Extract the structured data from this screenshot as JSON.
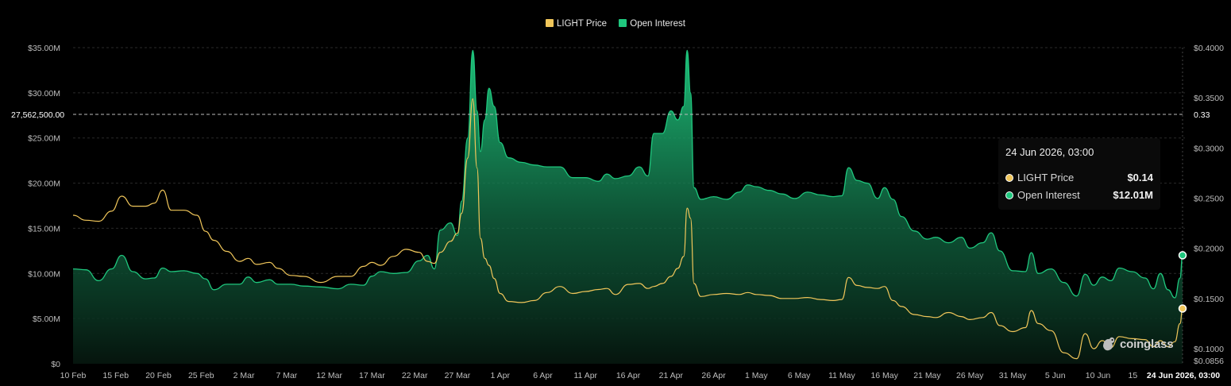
{
  "legend": {
    "price_label": "LIGHT Price",
    "oi_label": "Open Interest"
  },
  "colors": {
    "price": "#f0c65a",
    "oi": "#1fc77e",
    "background": "#000000"
  },
  "crosshair": {
    "left_label": "27,562,500.00",
    "right_label": "0.33"
  },
  "tooltip": {
    "title": "24 Jun 2026, 03:00",
    "price_label": "LIGHT Price",
    "price_value": "$0.14",
    "oi_label": "Open Interest",
    "oi_value": "$12.01M"
  },
  "watermark": "coinglass",
  "watermark_icon": "coinglass-logo-icon",
  "chart_data": {
    "type": "area",
    "grid": true,
    "legend_position": "top-center",
    "x_tick_labels": [
      "10 Feb",
      "15 Feb",
      "20 Feb",
      "25 Feb",
      "2 Mar",
      "7 Mar",
      "12 Mar",
      "17 Mar",
      "22 Mar",
      "27 Mar",
      "1 Apr",
      "6 Apr",
      "11 Apr",
      "16 Apr",
      "21 Apr",
      "26 Apr",
      "1 May",
      "6 May",
      "11 May",
      "16 May",
      "21 May",
      "26 May",
      "31 May",
      "5 Jun",
      "10 Jun",
      "15 Jun"
    ],
    "x_last_label": "24 Jun 2026, 03:00",
    "y_left": {
      "ticks": [
        "$0",
        "$5.00M",
        "$10.00M",
        "$15.00M",
        "$20.00M",
        "$25.00M",
        "$30.00M",
        "$35.00M"
      ],
      "range": [
        0,
        35
      ]
    },
    "y_right": {
      "ticks": [
        "$0.0856",
        "$0.1000",
        "$0.1500",
        "$0.2000",
        "$0.2500",
        "$0.3000",
        "$0.3500",
        "$0.4000"
      ],
      "range": [
        0.0856,
        0.4
      ]
    },
    "series": [
      {
        "name": "Open Interest",
        "axis": "left",
        "unit": "M USD",
        "points": [
          [
            0,
            10.5
          ],
          [
            1.5,
            10.4
          ],
          [
            3,
            9.2
          ],
          [
            4.5,
            10.5
          ],
          [
            5.7,
            12.0
          ],
          [
            7,
            10.2
          ],
          [
            8.5,
            9.4
          ],
          [
            9.5,
            9.5
          ],
          [
            10.5,
            10.6
          ],
          [
            11.5,
            10.2
          ],
          [
            13,
            10.3
          ],
          [
            14.5,
            10.0
          ],
          [
            15.5,
            9.4
          ],
          [
            16.5,
            8.2
          ],
          [
            18,
            8.8
          ],
          [
            19.5,
            8.8
          ],
          [
            20.5,
            9.6
          ],
          [
            21.5,
            9.0
          ],
          [
            23,
            9.3
          ],
          [
            24,
            8.8
          ],
          [
            25.5,
            8.8
          ],
          [
            27,
            8.6
          ],
          [
            29,
            8.5
          ],
          [
            31,
            8.3
          ],
          [
            32.5,
            8.8
          ],
          [
            34,
            8.7
          ],
          [
            35,
            9.7
          ],
          [
            36,
            10.2
          ],
          [
            37.5,
            10.0
          ],
          [
            39,
            10.1
          ],
          [
            40.5,
            11.4
          ],
          [
            41.5,
            12.0
          ],
          [
            42.3,
            10.5
          ],
          [
            43,
            14.8
          ],
          [
            44.2,
            15.6
          ],
          [
            45,
            14.2
          ],
          [
            45.5,
            18.0
          ],
          [
            46.2,
            25.0
          ],
          [
            46.8,
            34.7
          ],
          [
            47.3,
            28.0
          ],
          [
            47.7,
            23.5
          ],
          [
            48.2,
            27.0
          ],
          [
            48.7,
            30.5
          ],
          [
            49.3,
            28.5
          ],
          [
            50,
            24.5
          ],
          [
            51,
            22.8
          ],
          [
            52.5,
            22.3
          ],
          [
            54,
            22.0
          ],
          [
            55.5,
            21.8
          ],
          [
            57,
            21.8
          ],
          [
            58.5,
            20.6
          ],
          [
            60,
            20.6
          ],
          [
            61.5,
            20.2
          ],
          [
            62.5,
            21.0
          ],
          [
            63.5,
            20.5
          ],
          [
            65,
            20.8
          ],
          [
            66.3,
            21.8
          ],
          [
            67.3,
            20.8
          ],
          [
            68,
            25.5
          ],
          [
            69,
            25.5
          ],
          [
            70,
            28.0
          ],
          [
            70.8,
            27.0
          ],
          [
            71.5,
            28.5
          ],
          [
            71.9,
            34.7
          ],
          [
            72.3,
            30.0
          ],
          [
            72.7,
            19.5
          ],
          [
            73.5,
            18.2
          ],
          [
            75,
            18.5
          ],
          [
            76.5,
            18.2
          ],
          [
            78,
            19.0
          ],
          [
            79,
            19.8
          ],
          [
            80,
            19.6
          ],
          [
            81.5,
            19.2
          ],
          [
            83,
            18.8
          ],
          [
            84.5,
            18.3
          ],
          [
            86,
            19.0
          ],
          [
            87.5,
            18.7
          ],
          [
            89,
            18.5
          ],
          [
            90,
            18.6
          ],
          [
            90.8,
            21.7
          ],
          [
            91.8,
            20.3
          ],
          [
            93,
            20.0
          ],
          [
            94.2,
            18.3
          ],
          [
            95,
            19.5
          ],
          [
            96,
            18.2
          ],
          [
            97,
            16.3
          ],
          [
            98.5,
            14.7
          ],
          [
            100,
            13.8
          ],
          [
            101,
            14.0
          ],
          [
            102.5,
            13.4
          ],
          [
            104,
            14.0
          ],
          [
            105,
            12.8
          ],
          [
            106.5,
            13.4
          ],
          [
            107.5,
            14.5
          ],
          [
            108.5,
            12.5
          ],
          [
            110,
            10.3
          ],
          [
            111.5,
            10.2
          ],
          [
            112.2,
            12.3
          ],
          [
            113,
            10.0
          ],
          [
            114.5,
            10.5
          ],
          [
            116,
            9.0
          ],
          [
            117.5,
            7.5
          ],
          [
            118.5,
            9.9
          ],
          [
            119.5,
            8.7
          ],
          [
            120.5,
            9.6
          ],
          [
            121.5,
            9.2
          ],
          [
            122.5,
            10.6
          ],
          [
            124,
            10.2
          ],
          [
            125.5,
            9.5
          ],
          [
            126.5,
            8.3
          ],
          [
            127.3,
            10.0
          ],
          [
            128.2,
            8.2
          ],
          [
            129,
            7.3
          ],
          [
            129.6,
            9.5
          ],
          [
            129.9,
            12.01
          ]
        ]
      },
      {
        "name": "LIGHT Price",
        "axis": "right",
        "unit": "USD",
        "points": [
          [
            0,
            0.233
          ],
          [
            1.5,
            0.228
          ],
          [
            3,
            0.227
          ],
          [
            4.5,
            0.237
          ],
          [
            5.7,
            0.252
          ],
          [
            7,
            0.242
          ],
          [
            8.5,
            0.242
          ],
          [
            9.5,
            0.245
          ],
          [
            10.5,
            0.258
          ],
          [
            11.5,
            0.238
          ],
          [
            13,
            0.238
          ],
          [
            14.5,
            0.233
          ],
          [
            15.5,
            0.217
          ],
          [
            16.5,
            0.208
          ],
          [
            18,
            0.197
          ],
          [
            19.5,
            0.187
          ],
          [
            20.5,
            0.19
          ],
          [
            21.5,
            0.184
          ],
          [
            23,
            0.186
          ],
          [
            24,
            0.18
          ],
          [
            25.5,
            0.173
          ],
          [
            27,
            0.172
          ],
          [
            29,
            0.166
          ],
          [
            31,
            0.172
          ],
          [
            32.5,
            0.172
          ],
          [
            34,
            0.182
          ],
          [
            35,
            0.186
          ],
          [
            36,
            0.183
          ],
          [
            37.5,
            0.192
          ],
          [
            39,
            0.199
          ],
          [
            40.5,
            0.196
          ],
          [
            41.5,
            0.187
          ],
          [
            42.3,
            0.185
          ],
          [
            43,
            0.196
          ],
          [
            44.2,
            0.207
          ],
          [
            45,
            0.215
          ],
          [
            45.5,
            0.235
          ],
          [
            46.2,
            0.29
          ],
          [
            46.8,
            0.349
          ],
          [
            47.3,
            0.28
          ],
          [
            47.7,
            0.21
          ],
          [
            48.2,
            0.19
          ],
          [
            48.7,
            0.183
          ],
          [
            49.3,
            0.17
          ],
          [
            50,
            0.155
          ],
          [
            51,
            0.147
          ],
          [
            52.5,
            0.146
          ],
          [
            54,
            0.148
          ],
          [
            55.5,
            0.156
          ],
          [
            57,
            0.162
          ],
          [
            58.5,
            0.155
          ],
          [
            60,
            0.157
          ],
          [
            61.5,
            0.159
          ],
          [
            62.5,
            0.16
          ],
          [
            63.5,
            0.154
          ],
          [
            65,
            0.164
          ],
          [
            66.3,
            0.165
          ],
          [
            67.3,
            0.16
          ],
          [
            68,
            0.162
          ],
          [
            69,
            0.165
          ],
          [
            70,
            0.172
          ],
          [
            70.8,
            0.18
          ],
          [
            71.5,
            0.192
          ],
          [
            71.9,
            0.24
          ],
          [
            72.3,
            0.23
          ],
          [
            72.7,
            0.165
          ],
          [
            73.5,
            0.152
          ],
          [
            75,
            0.154
          ],
          [
            76.5,
            0.155
          ],
          [
            78,
            0.154
          ],
          [
            79,
            0.156
          ],
          [
            80,
            0.154
          ],
          [
            81.5,
            0.153
          ],
          [
            83,
            0.15
          ],
          [
            84.5,
            0.15
          ],
          [
            86,
            0.151
          ],
          [
            87.5,
            0.149
          ],
          [
            89,
            0.148
          ],
          [
            90,
            0.149
          ],
          [
            90.8,
            0.171
          ],
          [
            91.8,
            0.163
          ],
          [
            93,
            0.161
          ],
          [
            94.2,
            0.16
          ],
          [
            95,
            0.162
          ],
          [
            96,
            0.148
          ],
          [
            97,
            0.142
          ],
          [
            98.5,
            0.134
          ],
          [
            100,
            0.132
          ],
          [
            101,
            0.131
          ],
          [
            102.5,
            0.136
          ],
          [
            104,
            0.132
          ],
          [
            105,
            0.129
          ],
          [
            106.5,
            0.131
          ],
          [
            107.5,
            0.136
          ],
          [
            108.5,
            0.123
          ],
          [
            110,
            0.117
          ],
          [
            111.5,
            0.121
          ],
          [
            112.2,
            0.138
          ],
          [
            113,
            0.125
          ],
          [
            114.5,
            0.118
          ],
          [
            116,
            0.096
          ],
          [
            117.5,
            0.09
          ],
          [
            118.5,
            0.115
          ],
          [
            119.5,
            0.1
          ],
          [
            120.5,
            0.108
          ],
          [
            121.5,
            0.101
          ],
          [
            122.5,
            0.112
          ],
          [
            124,
            0.11
          ],
          [
            125.5,
            0.109
          ],
          [
            126.5,
            0.102
          ],
          [
            127.3,
            0.108
          ],
          [
            128.2,
            0.102
          ],
          [
            129,
            0.107
          ],
          [
            129.6,
            0.125
          ],
          [
            129.9,
            0.14
          ]
        ]
      }
    ],
    "crosshair_values": {
      "left": 27562500,
      "right": 0.33
    }
  }
}
